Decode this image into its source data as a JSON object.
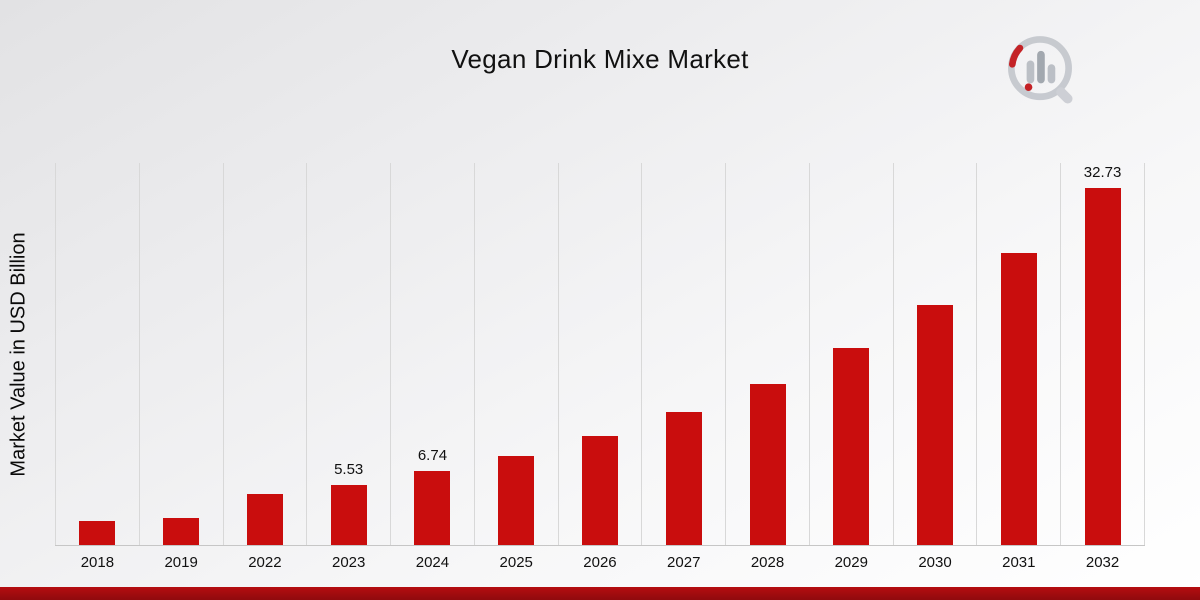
{
  "page": {
    "title": "Vegan Drink Mixe Market"
  },
  "chart_data": {
    "type": "bar",
    "title": "Vegan Drink Mixe Market",
    "xlabel": "",
    "ylabel": "Market Value in USD Billion",
    "ylim": [
      0,
      35
    ],
    "grid": "vertical-gridlines",
    "legend": "none",
    "bar_color": "#c90d0d",
    "categories": [
      "2018",
      "2019",
      "2022",
      "2023",
      "2024",
      "2025",
      "2026",
      "2027",
      "2028",
      "2029",
      "2030",
      "2031",
      "2032"
    ],
    "values": [
      2.2,
      2.5,
      4.7,
      5.53,
      6.74,
      8.2,
      10.0,
      12.2,
      14.8,
      18.1,
      22.0,
      26.8,
      32.73
    ],
    "labels": [
      null,
      null,
      null,
      "5.53",
      "6.74",
      null,
      null,
      null,
      null,
      null,
      null,
      null,
      "32.73"
    ]
  },
  "branding": {
    "logo_name": "market-research-future-logo",
    "accent_color": "#b50d10"
  }
}
